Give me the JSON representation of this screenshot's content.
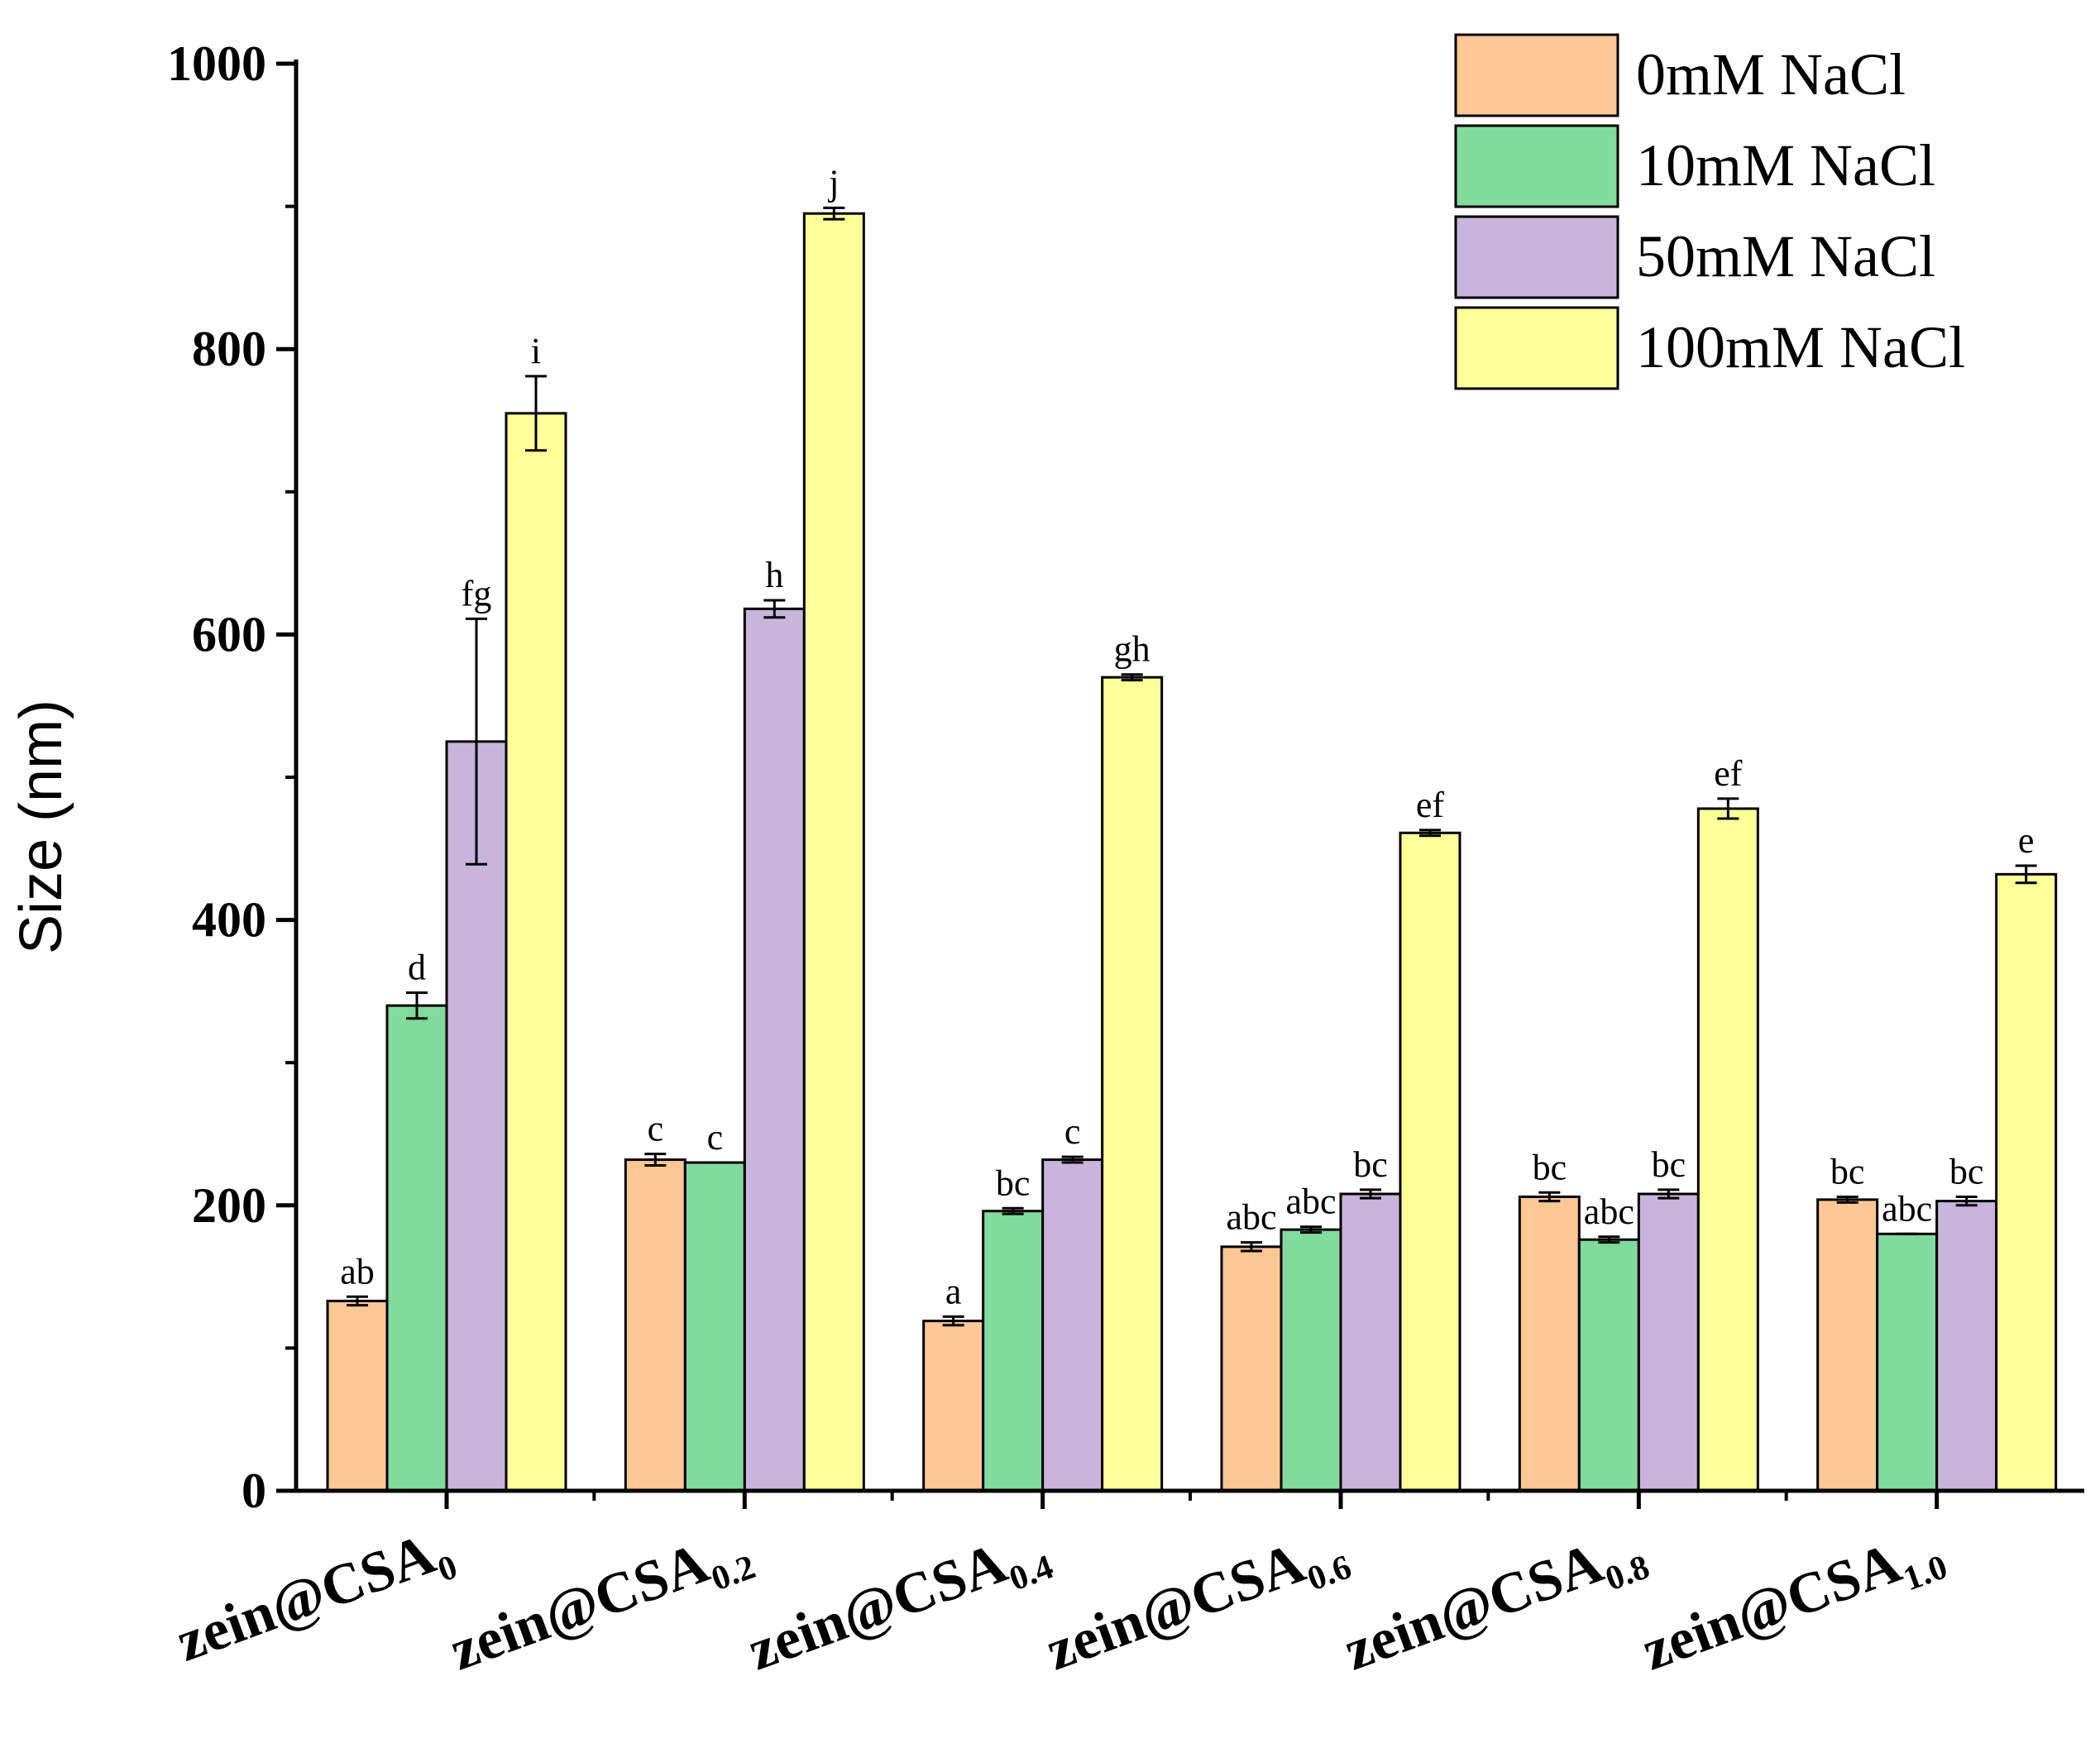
{
  "chart_data": {
    "type": "bar",
    "title": "",
    "xlabel": "",
    "ylabel": "Size (nm)",
    "ylim": [
      0,
      1000
    ],
    "yticks": [
      0,
      200,
      400,
      600,
      800,
      1000
    ],
    "grid": false,
    "legend_position": "top-right",
    "categories": [
      {
        "base": "zein@CSA",
        "sub": "0"
      },
      {
        "base": "zein@CSA",
        "sub": "0.2"
      },
      {
        "base": "zein@CSA",
        "sub": "0.4"
      },
      {
        "base": "zein@CSA",
        "sub": "0.6"
      },
      {
        "base": "zein@CSA",
        "sub": "0.8"
      },
      {
        "base": "zein@CSA",
        "sub": "1.0"
      }
    ],
    "series": [
      {
        "name": "0mM NaCl",
        "color": "#FFC794",
        "values": [
          133,
          232,
          119,
          171,
          206,
          204
        ],
        "errors": [
          3,
          4,
          3,
          3,
          3,
          2
        ],
        "letters": [
          "ab",
          "c",
          "a",
          "abc",
          "bc",
          "bc"
        ]
      },
      {
        "name": "10mM NaCl",
        "color": "#80DB9C",
        "values": [
          340,
          230,
          196,
          183,
          176,
          180
        ],
        "errors": [
          9,
          0,
          2,
          2,
          2,
          0
        ],
        "letters": [
          "d",
          "c",
          "bc",
          "abc",
          "abc",
          "abc"
        ]
      },
      {
        "name": "50mM NaCl",
        "color": "#C8B4DC",
        "values": [
          525,
          618,
          232,
          208,
          208,
          203
        ],
        "errors": [
          86,
          6,
          2,
          3,
          3,
          3
        ],
        "letters": [
          "fg",
          "h",
          "c",
          "bc",
          "bc",
          "bc"
        ]
      },
      {
        "name": "100mM NaCl",
        "color": "#FFFF99",
        "values": [
          755,
          895,
          570,
          461,
          478,
          432
        ],
        "errors": [
          26,
          4,
          2,
          2,
          7,
          6
        ],
        "letters": [
          "i",
          "j",
          "gh",
          "ef",
          "ef",
          "e"
        ]
      }
    ]
  }
}
